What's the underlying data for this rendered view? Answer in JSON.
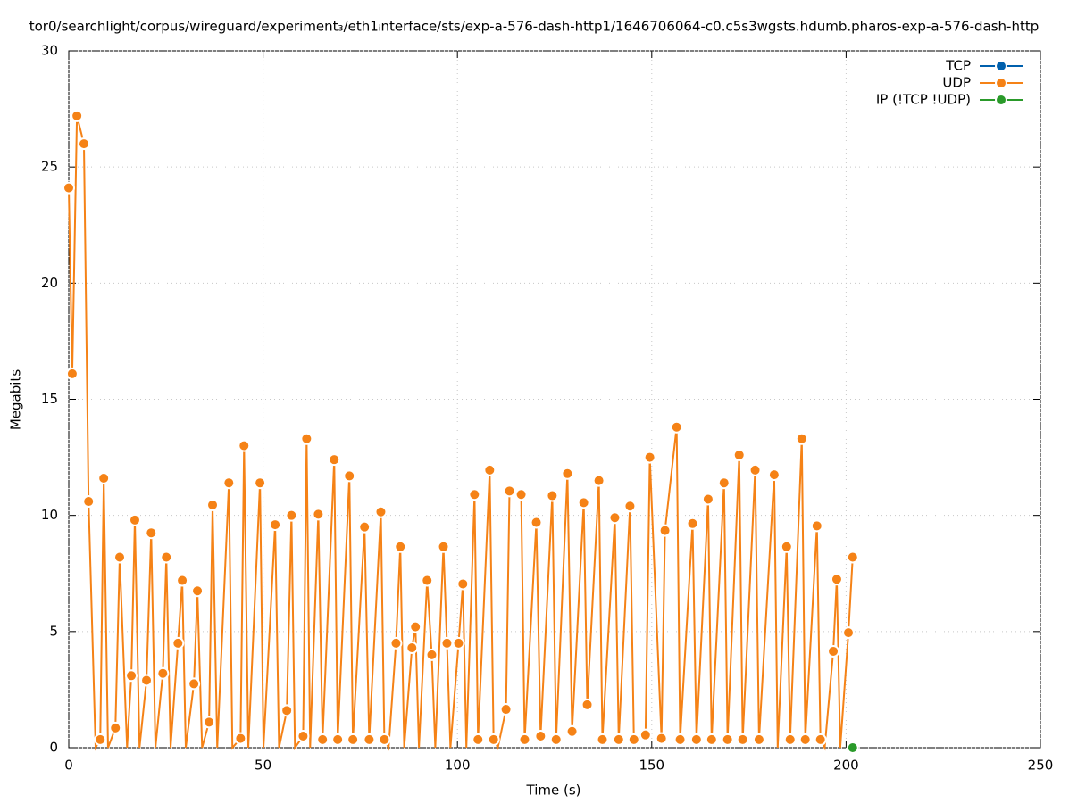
{
  "chart_data": {
    "type": "line",
    "title": "tor0/searchlight/corpus/wireguard/experiment₃/eth1ᵢnterface/sts/exp-a-576-dash-http1/1646706064-c0.c5s3wgsts.hdumb.pharos-exp-a-576-dash-http",
    "x_label": "Time (s)",
    "y_label": "Megabits",
    "xlim": [
      0,
      250
    ],
    "xticks": [
      0,
      50,
      100,
      150,
      200,
      250
    ],
    "ylim": [
      0,
      30
    ],
    "yticks": [
      0,
      5,
      10,
      15,
      20,
      25,
      30
    ],
    "grid": true,
    "legend": "top-right",
    "series": [
      {
        "name": "TCP",
        "color": "#0060ad",
        "x": [],
        "values": []
      },
      {
        "name": "UDP",
        "color": "#f58216",
        "x": [
          0.0,
          0.9,
          2.1,
          3.9,
          5.1,
          6.9,
          8.1,
          9.0,
          10.1,
          12.0,
          13.1,
          15.0,
          16.1,
          17.0,
          18.2,
          20.0,
          21.2,
          22.3,
          24.2,
          25.1,
          26.2,
          28.1,
          29.2,
          30.1,
          32.2,
          33.1,
          34.3,
          36.1,
          37.0,
          38.2,
          41.2,
          42.1,
          44.2,
          45.1,
          46.2,
          49.2,
          50.1,
          53.1,
          54.1,
          56.1,
          57.3,
          58.2,
          60.3,
          61.2,
          62.1,
          64.2,
          65.3,
          68.3,
          69.2,
          72.2,
          73.1,
          76.1,
          77.3,
          80.3,
          81.2,
          82.3,
          84.2,
          85.3,
          86.3,
          88.3,
          89.2,
          90.1,
          92.2,
          93.4,
          94.3,
          96.4,
          97.3,
          98.2,
          100.3,
          101.4,
          102.3,
          104.4,
          105.3,
          108.3,
          109.3,
          110.4,
          112.5,
          113.4,
          116.4,
          117.3,
          120.3,
          121.4,
          124.4,
          125.4,
          128.3,
          129.5,
          132.5,
          133.4,
          136.4,
          137.3,
          140.5,
          141.5,
          144.4,
          145.4,
          148.4,
          149.5,
          152.5,
          153.4,
          156.4,
          157.3,
          160.5,
          161.5,
          164.5,
          165.4,
          168.6,
          169.5,
          172.5,
          173.4,
          176.6,
          177.6,
          181.5,
          182.4,
          184.7,
          185.6,
          188.6,
          189.5,
          192.5,
          193.4,
          194.5,
          196.7,
          197.6,
          198.5,
          200.6,
          201.7
        ],
        "values": [
          24.1,
          16.1,
          27.2,
          26.0,
          10.6,
          0,
          0.35,
          11.6,
          0,
          0.85,
          8.2,
          0,
          3.1,
          9.8,
          0,
          2.9,
          9.25,
          0,
          3.2,
          8.2,
          0,
          4.5,
          7.2,
          0,
          2.75,
          6.75,
          0,
          1.1,
          10.45,
          0,
          11.4,
          0,
          0.4,
          13.0,
          0,
          11.4,
          0,
          9.6,
          0,
          1.6,
          10.0,
          0,
          0.5,
          13.3,
          0,
          10.05,
          0.35,
          12.4,
          0.35,
          11.7,
          0.35,
          9.5,
          0.35,
          10.15,
          0.35,
          0,
          4.5,
          8.65,
          0,
          4.3,
          5.2,
          0,
          7.2,
          4.0,
          0,
          8.65,
          4.5,
          0,
          4.5,
          7.05,
          0,
          10.9,
          0.35,
          11.95,
          0.35,
          0,
          1.65,
          11.05,
          10.9,
          0.35,
          9.7,
          0.5,
          10.85,
          0.35,
          11.8,
          0.7,
          10.55,
          1.85,
          11.5,
          0.35,
          9.9,
          0.35,
          10.4,
          0.35,
          0.55,
          12.5,
          0.4,
          9.35,
          13.8,
          0.35,
          9.65,
          0.35,
          10.7,
          0.35,
          11.4,
          0.35,
          12.6,
          0.35,
          11.95,
          0.35,
          11.75,
          0,
          8.65,
          0.35,
          13.3,
          0.35,
          9.55,
          0.35,
          0,
          4.15,
          7.25,
          0,
          4.95,
          8.2
        ]
      },
      {
        "name": "IP (!TCP  !UDP)",
        "color": "#2a9a2a",
        "x": [
          201.7
        ],
        "values": [
          0
        ]
      }
    ]
  }
}
